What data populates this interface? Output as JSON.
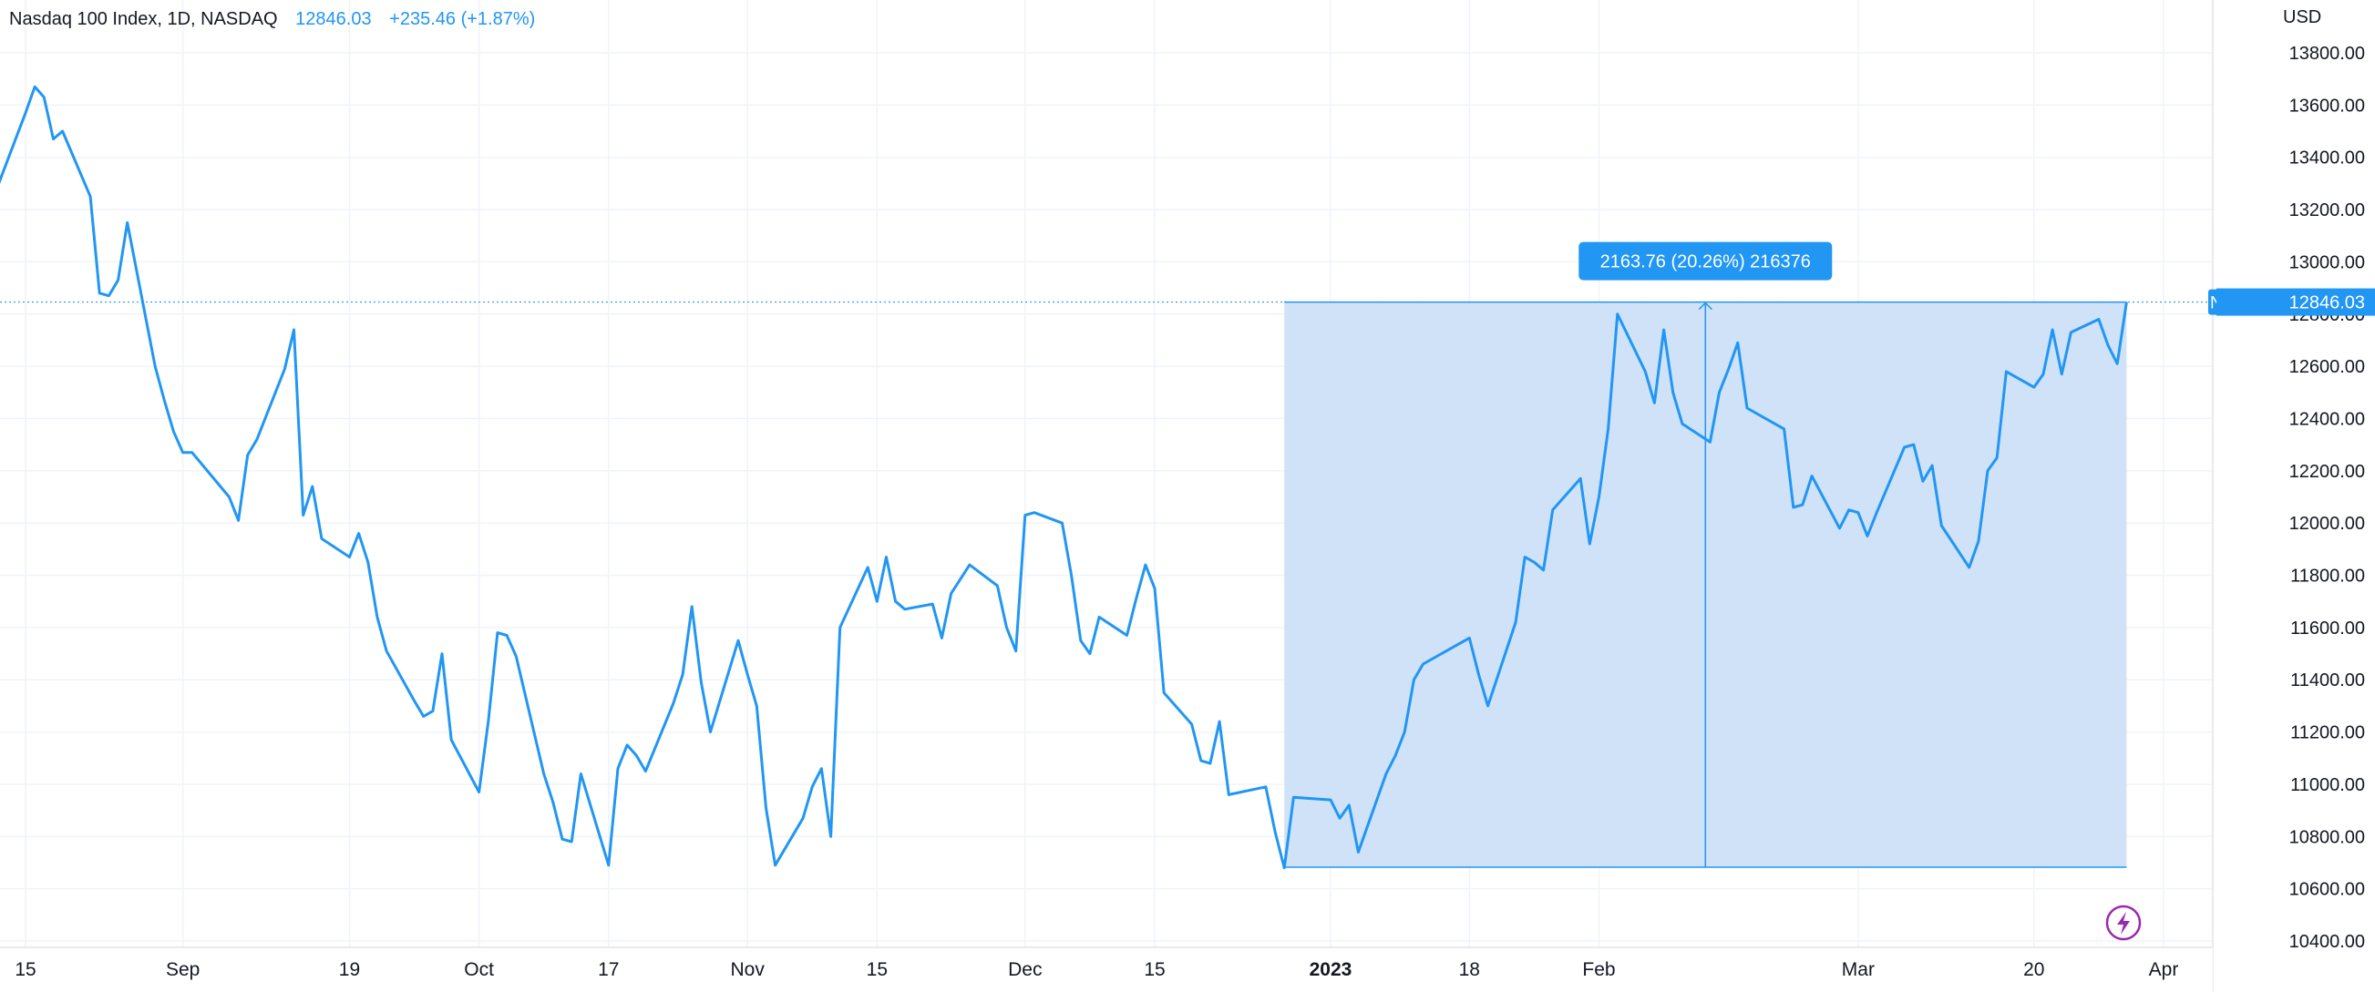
{
  "legend": {
    "symbol_title": "Nasdaq 100 Index, 1D, NASDAQ",
    "last_value": "12846.03",
    "change": "+235.46 (+1.87%)"
  },
  "price_axis": {
    "currency": "USD",
    "current_tag_symbol": "NDX",
    "current_tag_value": "12846.03"
  },
  "measure_label": "2163.76 (20.26%) 216376",
  "colors": {
    "line": "#2196f3",
    "grid": "#f0f3fa",
    "range_fill": "#cfe2f8",
    "axis_text": "#131722",
    "tag_bg": "#2196f3",
    "replay_icon": "#9c27b0"
  },
  "icons": {
    "replay": "lightning-bolt-icon"
  },
  "chart_data": {
    "type": "line",
    "title": "Nasdaq 100 Index, 1D, NASDAQ",
    "xlabel": "",
    "ylabel": "USD",
    "ylim": [
      10380,
      13980
    ],
    "y_ticks": [
      "10400.00",
      "10600.00",
      "10800.00",
      "11000.00",
      "11200.00",
      "11400.00",
      "11600.00",
      "11800.00",
      "12000.00",
      "12200.00",
      "12400.00",
      "12600.00",
      "12800.00",
      "13000.00",
      "13200.00",
      "13400.00",
      "13600.00",
      "13800.00"
    ],
    "x_ticks": [
      {
        "label": "15",
        "date": "2022-08-15",
        "bold": false
      },
      {
        "label": "Sep",
        "date": "2022-09-01",
        "bold": false
      },
      {
        "label": "19",
        "date": "2022-09-19",
        "bold": false
      },
      {
        "label": "Oct",
        "date": "2022-10-03",
        "bold": false
      },
      {
        "label": "17",
        "date": "2022-10-17",
        "bold": false
      },
      {
        "label": "Nov",
        "date": "2022-11-01",
        "bold": false
      },
      {
        "label": "15",
        "date": "2022-11-15",
        "bold": false
      },
      {
        "label": "Dec",
        "date": "2022-12-01",
        "bold": false
      },
      {
        "label": "15",
        "date": "2022-12-15",
        "bold": false
      },
      {
        "label": "2023",
        "date": "2023-01-03",
        "bold": true
      },
      {
        "label": "18",
        "date": "2023-01-18",
        "bold": false
      },
      {
        "label": "Feb",
        "date": "2023-02-01",
        "bold": false
      },
      {
        "label": "Mar",
        "date": "2023-03-01",
        "bold": false
      },
      {
        "label": "20",
        "date": "2023-03-20",
        "bold": false
      },
      {
        "label": "Apr",
        "date": "2023-04-03",
        "bold": false
      }
    ],
    "grid": true,
    "series": [
      {
        "color": "#2196f3",
        "points": [
          [
            "2022-08-12",
            13290
          ],
          [
            "2022-08-15",
            13570
          ],
          [
            "2022-08-16",
            13670
          ],
          [
            "2022-08-17",
            13630
          ],
          [
            "2022-08-18",
            13470
          ],
          [
            "2022-08-19",
            13500
          ],
          [
            "2022-08-22",
            13250
          ],
          [
            "2022-08-23",
            12880
          ],
          [
            "2022-08-24",
            12870
          ],
          [
            "2022-08-25",
            12930
          ],
          [
            "2022-08-26",
            13150
          ],
          [
            "2022-08-29",
            12600
          ],
          [
            "2022-08-30",
            12470
          ],
          [
            "2022-08-31",
            12350
          ],
          [
            "2022-09-01",
            12270
          ],
          [
            "2022-09-02",
            12270
          ],
          [
            "2022-09-06",
            12100
          ],
          [
            "2022-09-07",
            12010
          ],
          [
            "2022-09-08",
            12260
          ],
          [
            "2022-09-09",
            12320
          ],
          [
            "2022-09-12",
            12590
          ],
          [
            "2022-09-13",
            12740
          ],
          [
            "2022-09-14",
            12030
          ],
          [
            "2022-09-15",
            12140
          ],
          [
            "2022-09-16",
            11940
          ],
          [
            "2022-09-19",
            11870
          ],
          [
            "2022-09-20",
            11960
          ],
          [
            "2022-09-21",
            11850
          ],
          [
            "2022-09-22",
            11640
          ],
          [
            "2022-09-23",
            11510
          ],
          [
            "2022-09-26",
            11320
          ],
          [
            "2022-09-27",
            11260
          ],
          [
            "2022-09-28",
            11280
          ],
          [
            "2022-09-29",
            11500
          ],
          [
            "2022-09-30",
            11170
          ],
          [
            "2022-10-03",
            10970
          ],
          [
            "2022-10-04",
            11240
          ],
          [
            "2022-10-05",
            11580
          ],
          [
            "2022-10-06",
            11570
          ],
          [
            "2022-10-07",
            11490
          ],
          [
            "2022-10-10",
            11040
          ],
          [
            "2022-10-11",
            10930
          ],
          [
            "2022-10-12",
            10790
          ],
          [
            "2022-10-13",
            10780
          ],
          [
            "2022-10-14",
            11040
          ],
          [
            "2022-10-17",
            10690
          ],
          [
            "2022-10-18",
            11060
          ],
          [
            "2022-10-19",
            11150
          ],
          [
            "2022-10-20",
            11110
          ],
          [
            "2022-10-21",
            11050
          ],
          [
            "2022-10-24",
            11310
          ],
          [
            "2022-10-25",
            11420
          ],
          [
            "2022-10-26",
            11680
          ],
          [
            "2022-10-27",
            11390
          ],
          [
            "2022-10-28",
            11200
          ],
          [
            "2022-10-31",
            11550
          ],
          [
            "2022-11-01",
            11420
          ],
          [
            "2022-11-02",
            11300
          ],
          [
            "2022-11-03",
            10910
          ],
          [
            "2022-11-04",
            10690
          ],
          [
            "2022-11-07",
            10870
          ],
          [
            "2022-11-08",
            10990
          ],
          [
            "2022-11-09",
            11060
          ],
          [
            "2022-11-10",
            10800
          ],
          [
            "2022-11-11",
            11600
          ],
          [
            "2022-11-14",
            11830
          ],
          [
            "2022-11-15",
            11700
          ],
          [
            "2022-11-16",
            11870
          ],
          [
            "2022-11-17",
            11700
          ],
          [
            "2022-11-18",
            11670
          ],
          [
            "2022-11-21",
            11690
          ],
          [
            "2022-11-22",
            11560
          ],
          [
            "2022-11-23",
            11730
          ],
          [
            "2022-11-25",
            11840
          ],
          [
            "2022-11-28",
            11760
          ],
          [
            "2022-11-29",
            11600
          ],
          [
            "2022-11-30",
            11510
          ],
          [
            "2022-12-01",
            12030
          ],
          [
            "2022-12-02",
            12040
          ],
          [
            "2022-12-05",
            12000
          ],
          [
            "2022-12-06",
            11800
          ],
          [
            "2022-12-07",
            11550
          ],
          [
            "2022-12-08",
            11500
          ],
          [
            "2022-12-09",
            11640
          ],
          [
            "2022-12-12",
            11570
          ],
          [
            "2022-12-13",
            11710
          ],
          [
            "2022-12-14",
            11840
          ],
          [
            "2022-12-15",
            11750
          ],
          [
            "2022-12-16",
            11350
          ],
          [
            "2022-12-19",
            11230
          ],
          [
            "2022-12-20",
            11090
          ],
          [
            "2022-12-21",
            11080
          ],
          [
            "2022-12-22",
            11240
          ],
          [
            "2022-12-23",
            10960
          ],
          [
            "2022-12-27",
            10990
          ],
          [
            "2022-12-28",
            10820
          ],
          [
            "2022-12-29",
            10680
          ],
          [
            "2022-12-30",
            10950
          ],
          [
            "2023-01-03",
            10940
          ],
          [
            "2023-01-04",
            10870
          ],
          [
            "2023-01-05",
            10920
          ],
          [
            "2023-01-06",
            10740
          ],
          [
            "2023-01-09",
            11040
          ],
          [
            "2023-01-10",
            11110
          ],
          [
            "2023-01-11",
            11200
          ],
          [
            "2023-01-12",
            11400
          ],
          [
            "2023-01-13",
            11460
          ],
          [
            "2023-01-17",
            11540
          ],
          [
            "2023-01-18",
            11560
          ],
          [
            "2023-01-19",
            11420
          ],
          [
            "2023-01-20",
            11300
          ],
          [
            "2023-01-23",
            11620
          ],
          [
            "2023-01-24",
            11870
          ],
          [
            "2023-01-25",
            11850
          ],
          [
            "2023-01-26",
            11820
          ],
          [
            "2023-01-27",
            12050
          ],
          [
            "2023-01-30",
            12170
          ],
          [
            "2023-01-31",
            11920
          ],
          [
            "2023-02-01",
            12100
          ],
          [
            "2023-02-02",
            12360
          ],
          [
            "2023-02-03",
            12800
          ],
          [
            "2023-02-06",
            12580
          ],
          [
            "2023-02-07",
            12460
          ],
          [
            "2023-02-08",
            12740
          ],
          [
            "2023-02-09",
            12500
          ],
          [
            "2023-02-10",
            12380
          ],
          [
            "2023-02-13",
            12310
          ],
          [
            "2023-02-14",
            12500
          ],
          [
            "2023-02-15",
            12590
          ],
          [
            "2023-02-16",
            12690
          ],
          [
            "2023-02-17",
            12440
          ],
          [
            "2023-02-21",
            12360
          ],
          [
            "2023-02-22",
            12060
          ],
          [
            "2023-02-23",
            12070
          ],
          [
            "2023-02-24",
            12180
          ],
          [
            "2023-02-27",
            11980
          ],
          [
            "2023-02-28",
            12050
          ],
          [
            "2023-03-01",
            12040
          ],
          [
            "2023-03-02",
            11950
          ],
          [
            "2023-03-03",
            12040
          ],
          [
            "2023-03-06",
            12290
          ],
          [
            "2023-03-07",
            12300
          ],
          [
            "2023-03-08",
            12160
          ],
          [
            "2023-03-09",
            12220
          ],
          [
            "2023-03-10",
            11990
          ],
          [
            "2023-03-13",
            11830
          ],
          [
            "2023-03-14",
            11930
          ],
          [
            "2023-03-15",
            12200
          ],
          [
            "2023-03-16",
            12250
          ],
          [
            "2023-03-17",
            12580
          ],
          [
            "2023-03-20",
            12520
          ],
          [
            "2023-03-21",
            12570
          ],
          [
            "2023-03-22",
            12740
          ],
          [
            "2023-03-23",
            12570
          ],
          [
            "2023-03-24",
            12730
          ],
          [
            "2023-03-27",
            12780
          ],
          [
            "2023-03-28",
            12680
          ],
          [
            "2023-03-29",
            12610
          ],
          [
            "2023-03-30",
            12846
          ]
        ]
      }
    ],
    "annotations": {
      "price_range": {
        "start_date": "2022-12-29",
        "end_date": "2023-03-30",
        "low": 10682.27,
        "high": 12846.03,
        "label": "2163.76 (20.26%) 216376"
      },
      "current_price_line": 12846.03
    }
  }
}
